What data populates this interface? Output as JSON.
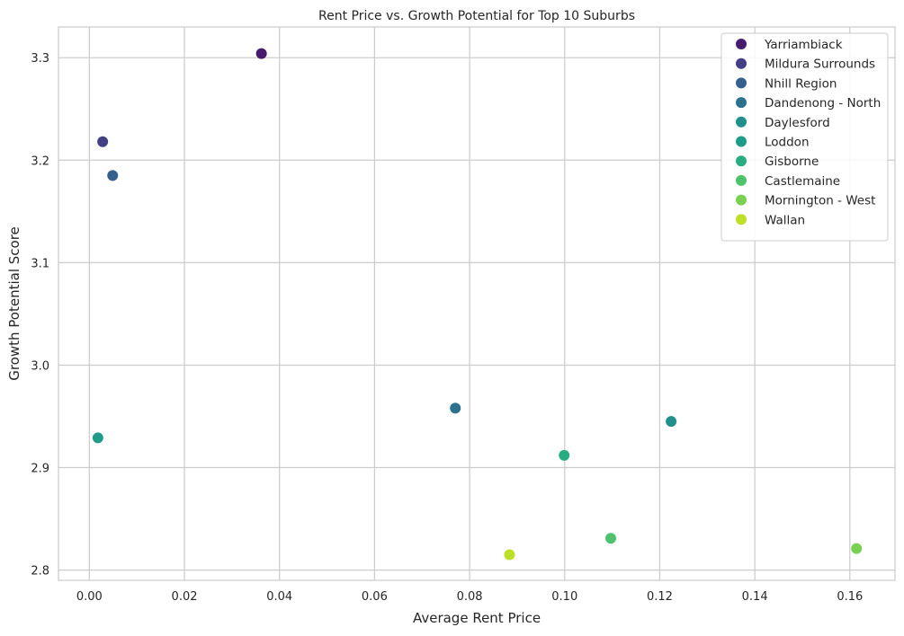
{
  "chart_data": {
    "type": "scatter",
    "title": "Rent Price vs. Growth Potential for Top 10 Suburbs",
    "xlabel": "Average Rent Price",
    "ylabel": "Growth Potential Score",
    "xlim": [
      -0.0065,
      0.1695
    ],
    "ylim": [
      2.79,
      3.33
    ],
    "x_ticks": [
      0.0,
      0.02,
      0.04,
      0.06,
      0.08,
      0.1,
      0.12,
      0.14,
      0.16
    ],
    "x_tick_labels": [
      "0.00",
      "0.02",
      "0.04",
      "0.06",
      "0.08",
      "0.10",
      "0.12",
      "0.14",
      "0.16"
    ],
    "y_ticks": [
      2.8,
      2.9,
      3.0,
      3.1,
      3.2,
      3.3
    ],
    "y_tick_labels": [
      "2.8",
      "2.9",
      "3.0",
      "3.1",
      "3.2",
      "3.3"
    ],
    "grid": true,
    "legend_position": "top-right",
    "series": [
      {
        "name": "Yarriambiack",
        "color": "#471c6e",
        "x": 0.0362,
        "y": 3.304
      },
      {
        "name": "Mildura Surrounds",
        "color": "#433e85",
        "x": 0.0028,
        "y": 3.218
      },
      {
        "name": "Nhill Region",
        "color": "#355f8d",
        "x": 0.0049,
        "y": 3.185
      },
      {
        "name": "Dandenong - North",
        "color": "#2c718e",
        "x": 0.077,
        "y": 2.958
      },
      {
        "name": "Daylesford",
        "color": "#21908d",
        "x": 0.1224,
        "y": 2.945
      },
      {
        "name": "Loddon",
        "color": "#1e9c89",
        "x": 0.0018,
        "y": 2.929
      },
      {
        "name": "Gisborne",
        "color": "#27ad81",
        "x": 0.0999,
        "y": 2.912
      },
      {
        "name": "Castlemaine",
        "color": "#4ec36b",
        "x": 0.1097,
        "y": 2.831
      },
      {
        "name": "Mornington - West",
        "color": "#7ad151",
        "x": 0.1614,
        "y": 2.821
      },
      {
        "name": "Wallan",
        "color": "#bddf26",
        "x": 0.0884,
        "y": 2.815
      }
    ]
  }
}
